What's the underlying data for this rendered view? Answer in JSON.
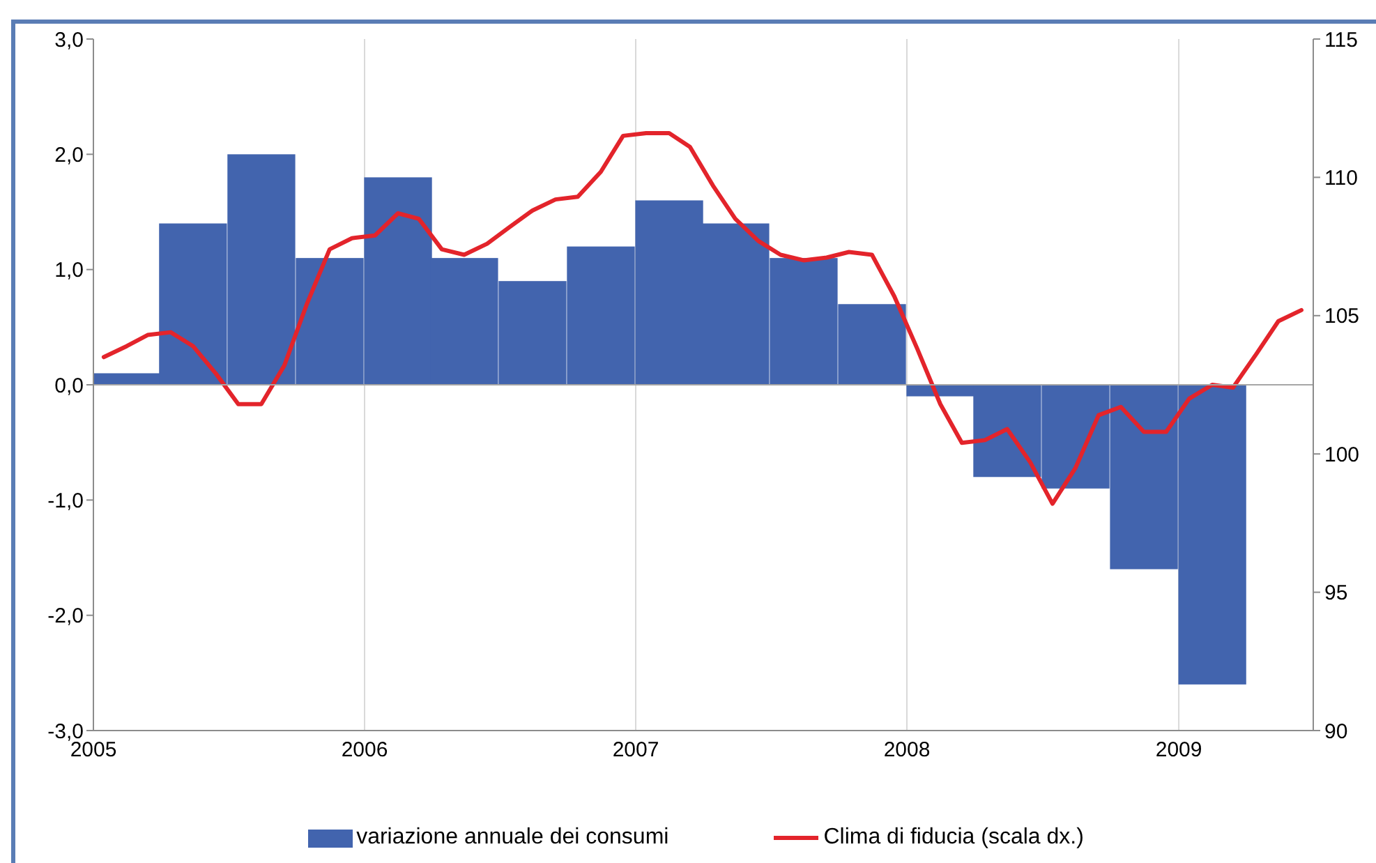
{
  "chart_data": {
    "type": "bar",
    "x": [
      "2005-02-15",
      "2005-05-15",
      "2005-08-15",
      "2005-11-15",
      "2006-02-15",
      "2006-05-15",
      "2006-08-15",
      "2006-11-15",
      "2007-02-15",
      "2007-05-15",
      "2007-08-15",
      "2007-11-15",
      "2008-02-15",
      "2008-05-15",
      "2008-08-15",
      "2008-11-15",
      "2009-02-15"
    ],
    "xlim": [
      "2005",
      "2009-07"
    ],
    "xticks": [
      "2005",
      "2006",
      "2007",
      "2008",
      "2009"
    ],
    "ylim": [
      -3,
      3
    ],
    "yticks": [
      {
        "value": -3,
        "label": "-3,0"
      },
      {
        "value": -2,
        "label": "-2,0"
      },
      {
        "value": -1,
        "label": "-1,0"
      },
      {
        "value": 0,
        "label": "0,0"
      },
      {
        "value": 1,
        "label": "1,0"
      },
      {
        "value": 2,
        "label": "2,0"
      },
      {
        "value": 3,
        "label": "3,0"
      }
    ],
    "y2lim": [
      90,
      115
    ],
    "y2ticks": [
      90,
      95,
      100,
      105,
      110,
      115
    ],
    "grid": "x",
    "legend": "bottom",
    "marker": "none",
    "ref_lines": [
      {
        "axis": "y",
        "value": 0,
        "color": "#a6a6a6"
      }
    ],
    "series": [
      {
        "name": "variazione annuale dei consumi",
        "color": "#4264ae",
        "values": [
          0.1,
          1.4,
          2.0,
          1.1,
          1.8,
          1.1,
          0.9,
          1.2,
          1.6,
          1.4,
          1.1,
          0.7,
          -0.1,
          -0.8,
          -0.9,
          -1.6,
          -2.6
        ]
      },
      {
        "name": "Clima di fiducia (scala dx.)",
        "type": "line",
        "axis": "y2",
        "color": "#e3242b",
        "x": [
          "2005-01-15",
          "2005-02-15",
          "2005-03-15",
          "2005-04-15",
          "2005-05-15",
          "2005-06-15",
          "2005-07-15",
          "2005-08-15",
          "2005-09-15",
          "2005-10-15",
          "2005-11-15",
          "2005-12-15",
          "2006-01-15",
          "2006-02-15",
          "2006-03-15",
          "2006-04-15",
          "2006-05-15",
          "2006-06-15",
          "2006-07-15",
          "2006-08-15",
          "2006-09-15",
          "2006-10-15",
          "2006-11-15",
          "2006-12-15",
          "2007-01-15",
          "2007-02-15",
          "2007-03-15",
          "2007-04-15",
          "2007-05-15",
          "2007-06-15",
          "2007-07-15",
          "2007-08-15",
          "2007-09-15",
          "2007-10-15",
          "2007-11-15",
          "2007-12-15",
          "2008-01-15",
          "2008-02-15",
          "2008-03-15",
          "2008-04-15",
          "2008-05-15",
          "2008-06-15",
          "2008-07-15",
          "2008-08-15",
          "2008-09-15",
          "2008-10-15",
          "2008-11-15",
          "2008-12-15",
          "2009-01-15",
          "2009-02-15",
          "2009-03-15",
          "2009-04-15",
          "2009-05-15",
          "2009-06-15"
        ],
        "values": [
          103.5,
          103.9,
          104.3,
          104.4,
          103.9,
          102.9,
          101.8,
          101.8,
          103.2,
          105.4,
          107.4,
          107.8,
          107.9,
          108.7,
          108.5,
          107.4,
          107.2,
          107.6,
          108.2,
          108.8,
          109.2,
          109.3,
          110.2,
          111.5,
          111.6,
          111.6,
          111.1,
          109.7,
          108.5,
          107.7,
          107.2,
          107.0,
          107.1,
          107.3,
          107.2,
          105.7,
          103.8,
          101.8,
          100.4,
          100.5,
          100.9,
          99.7,
          98.2,
          99.5,
          101.4,
          101.7,
          100.8,
          100.8,
          102.0,
          102.5,
          102.4,
          103.6,
          104.8,
          105.2
        ]
      }
    ]
  }
}
